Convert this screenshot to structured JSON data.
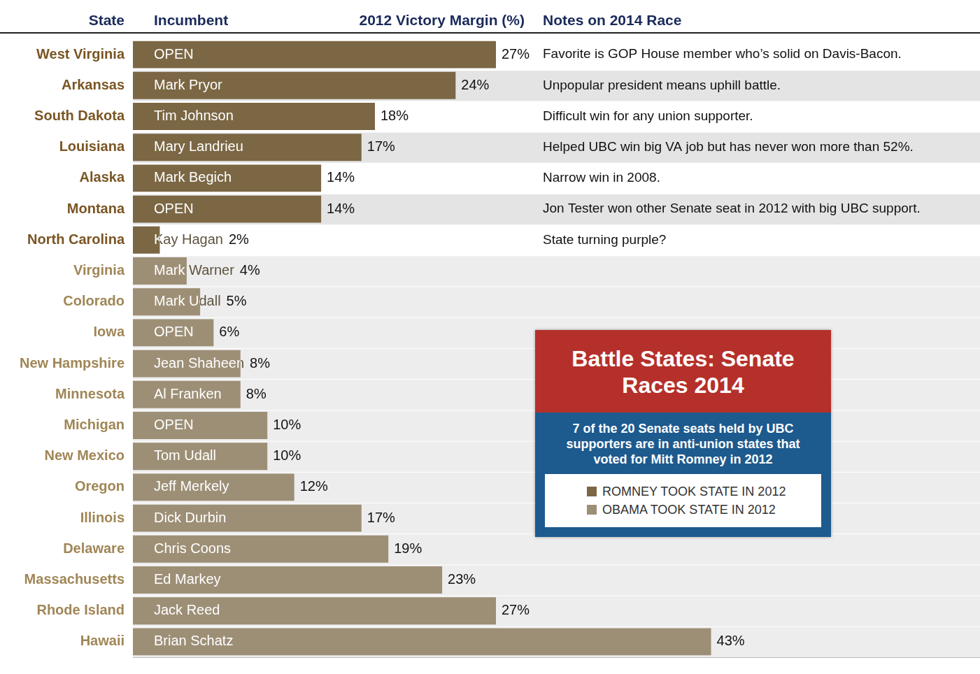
{
  "chart_data": {
    "type": "bar",
    "orientation": "horizontal",
    "stacked": true,
    "title": "Battle States: Senate Races 2014",
    "subtitle": "7 of the 20 Senate seats held by UBC supporters are in anti-union states that voted for Mitt Romney in 2012",
    "headers": [
      "State",
      "Incumbent",
      "2012 Victory Margin (%)",
      "Notes on 2014 Race"
    ],
    "categories": [
      "West Virginia",
      "Arkansas",
      "South Dakota",
      "Louisiana",
      "Alaska",
      "Montana",
      "North Carolina",
      "Virginia",
      "Colorado",
      "Iowa",
      "New Hampshire",
      "Minnesota",
      "Michigan",
      "New Mexico",
      "Oregon",
      "Illinois",
      "Delaware",
      "Massachusetts",
      "Rhode Island",
      "Hawaii"
    ],
    "incumbents": [
      "OPEN",
      "Mark Pryor",
      "Tim Johnson",
      "Mary Landrieu",
      "Mark Begich",
      "OPEN",
      "Kay Hagan",
      "Mark Warner",
      "Mark Udall",
      "OPEN",
      "Jean Shaheen",
      "Al Franken",
      "OPEN",
      "Tom Udall",
      "Jeff Merkely",
      "Dick Durbin",
      "Chris Coons",
      "Ed Markey",
      "Jack Reed",
      "Brian Schatz"
    ],
    "notes": [
      "Favorite is GOP House member who’s solid on Davis-Bacon.",
      "Unpopular president means uphill battle.",
      "Difficult win for any union supporter.",
      "Helped UBC win big VA job but has never won more than 52%.",
      "Narrow win in 2008.",
      "Jon Tester won other Senate seat in 2012 with big UBC support.",
      "State turning purple?",
      null,
      null,
      null,
      null,
      null,
      null,
      null,
      null,
      null,
      null,
      null,
      null,
      null
    ],
    "series": [
      {
        "name": "ROMNEY TOOK STATE IN 2012",
        "color": "#7b6744",
        "values": [
          27,
          24,
          18,
          17,
          14,
          14,
          2,
          null,
          null,
          null,
          null,
          null,
          null,
          null,
          null,
          null,
          null,
          null,
          null,
          null
        ],
        "value_labels": [
          "27%",
          "24%",
          "18%",
          "17%",
          "14%",
          "14%",
          "2%",
          null,
          null,
          null,
          null,
          null,
          null,
          null,
          null,
          null,
          null,
          null,
          null,
          null
        ]
      },
      {
        "name": "OBAMA TOOK STATE IN 2012",
        "color": "#9d8f76",
        "values": [
          null,
          null,
          null,
          null,
          null,
          null,
          null,
          4,
          5,
          6,
          8,
          8,
          10,
          10,
          12,
          17,
          19,
          23,
          27,
          43
        ],
        "value_labels": [
          null,
          null,
          null,
          null,
          null,
          null,
          null,
          "4%",
          "5%",
          "6%",
          "8%",
          "8%",
          "10%",
          "10%",
          "12%",
          "17%",
          "19%",
          "23%",
          "27%",
          "43%"
        ]
      }
    ],
    "xlim": [
      0,
      63
    ],
    "xticks": [],
    "tick_labels": "y",
    "grid": false,
    "data_labels": true,
    "legend": "right"
  }
}
